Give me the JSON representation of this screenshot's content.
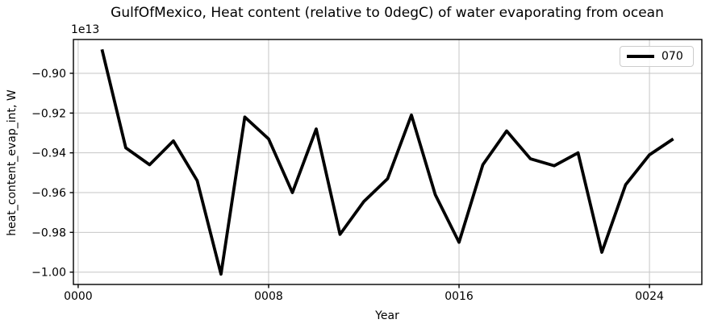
{
  "figure": {
    "title": "GulfOfMexico, Heat content (relative to 0degC) of water evaporating from ocean",
    "offset_text": "1e13",
    "xlabel": "Year",
    "ylabel": "heat_content_evap_int, W",
    "legend": {
      "label": "070",
      "position": "upper right"
    },
    "colors": {
      "line": "#000000",
      "grid": "#c6c6c6",
      "spine": "#000000",
      "text": "#000000",
      "background": "#ffffff",
      "legend_border": "#cccccc"
    }
  },
  "chart_data": {
    "type": "line",
    "title": "GulfOfMexico, Heat content (relative to 0degC) of water evaporating from ocean",
    "xlabel": "Year",
    "ylabel": "heat_content_evap_int, W",
    "y_offset_factor": "1e13",
    "grid": true,
    "legend_position": "upper right",
    "xlim": [
      -0.2,
      26.2
    ],
    "ylim": [
      -1.0062,
      -0.883
    ],
    "xticks": {
      "values": [
        0,
        8,
        16,
        24
      ],
      "labels": [
        "0000",
        "0008",
        "0016",
        "0024"
      ]
    },
    "yticks": {
      "values": [
        -0.9,
        -0.92,
        -0.94,
        -0.96,
        -0.98,
        -1.0
      ],
      "labels": [
        "−0.90",
        "−0.92",
        "−0.94",
        "−0.96",
        "−0.98",
        "−1.00"
      ]
    },
    "series": [
      {
        "name": "070",
        "color": "#000000",
        "linewidth": 3.8,
        "x": [
          1,
          2,
          3,
          4,
          5,
          6,
          7,
          8,
          9,
          10,
          11,
          12,
          13,
          14,
          15,
          16,
          17,
          18,
          19,
          20,
          21,
          22,
          23,
          24,
          25
        ],
        "y": [
          -0.888,
          -0.9375,
          -0.946,
          -0.934,
          -0.954,
          -1.001,
          -0.922,
          -0.933,
          -0.96,
          -0.928,
          -0.981,
          -0.9645,
          -0.953,
          -0.921,
          -0.961,
          -0.985,
          -0.946,
          -0.929,
          -0.943,
          -0.9465,
          -0.94,
          -0.99,
          -0.956,
          -0.941,
          -0.933
        ]
      }
    ]
  }
}
